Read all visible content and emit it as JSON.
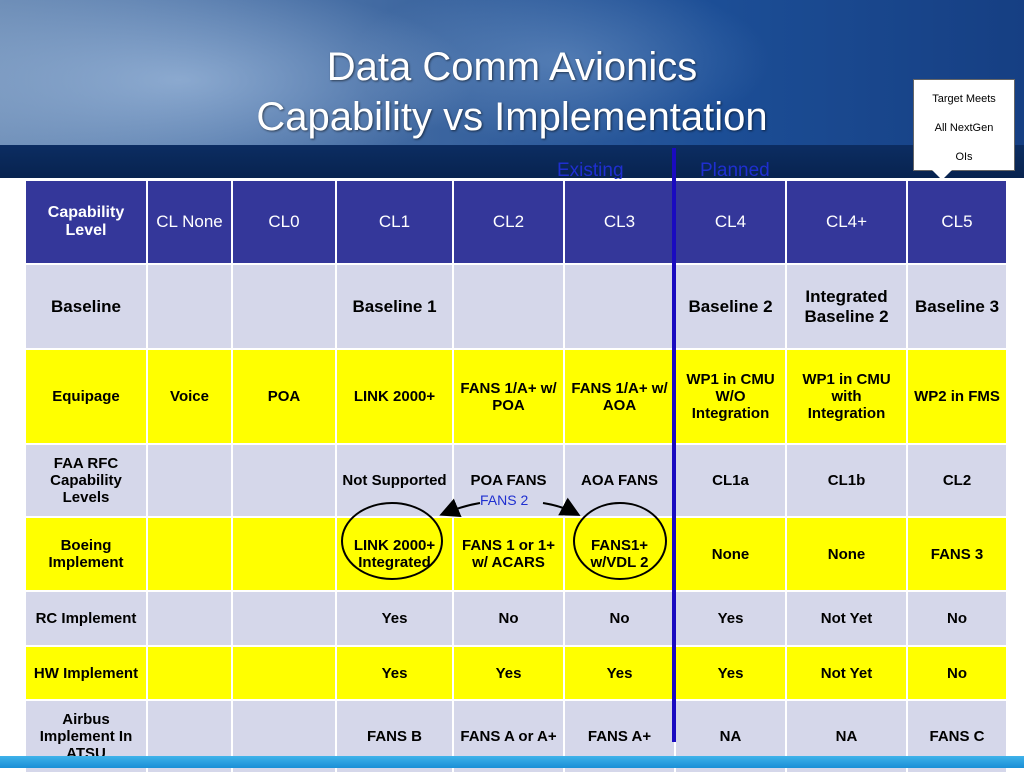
{
  "slide": {
    "title_line1": "Data Comm Avionics",
    "title_line2": "Capability vs Implementation",
    "target_box": [
      "Target Meets",
      "All NextGen",
      "OIs"
    ],
    "legend_existing": "Existing",
    "legend_planned": "Planned",
    "fans2_label": "FANS 2"
  },
  "table": {
    "header": [
      "Capability Level",
      "CL None",
      "CL0",
      "CL1",
      "CL2",
      "CL3",
      "CL4",
      "CL4+",
      "CL5"
    ],
    "rows": [
      {
        "label": "Baseline",
        "cells": [
          "",
          "",
          "Baseline 1",
          "",
          "",
          "Baseline 2",
          "Integrated Baseline 2",
          "Baseline 3"
        ]
      },
      {
        "label": "Equipage",
        "cells": [
          "Voice",
          "POA",
          "LINK 2000+",
          "FANS 1/A+ w/ POA",
          "FANS 1/A+ w/ AOA",
          "WP1 in CMU W/O Integration",
          "WP1 in CMU with Integration",
          "WP2 in FMS"
        ]
      },
      {
        "label": "FAA RFC Capability Levels",
        "cells": [
          "",
          "",
          "Not Supported",
          "POA FANS",
          "AOA FANS",
          "CL1a",
          "CL1b",
          "CL2"
        ]
      },
      {
        "label": "Boeing Implement",
        "cells": [
          "",
          "",
          "LINK 2000+ Integrated",
          "FANS 1 or 1+ w/ ACARS",
          "FANS1+ w/VDL 2",
          "None",
          "None",
          "FANS 3"
        ]
      },
      {
        "label": "RC Implement",
        "cells": [
          "",
          "",
          "Yes",
          "No",
          "No",
          "Yes",
          "Not Yet",
          "No"
        ]
      },
      {
        "label": "HW Implement",
        "cells": [
          "",
          "",
          "Yes",
          "Yes",
          "Yes",
          "Yes",
          "Not Yet",
          "No"
        ]
      },
      {
        "label": "Airbus Implement In ATSU",
        "cells": [
          "",
          "",
          "FANS B",
          "FANS A or A+",
          "FANS A+",
          "NA",
          "NA",
          "FANS C"
        ]
      }
    ]
  },
  "colors": {
    "header_bg": "#34379a",
    "yellow_row": "#ffff00",
    "lavender_row": "#d5d7ea",
    "divider": "#1a0bc0"
  }
}
